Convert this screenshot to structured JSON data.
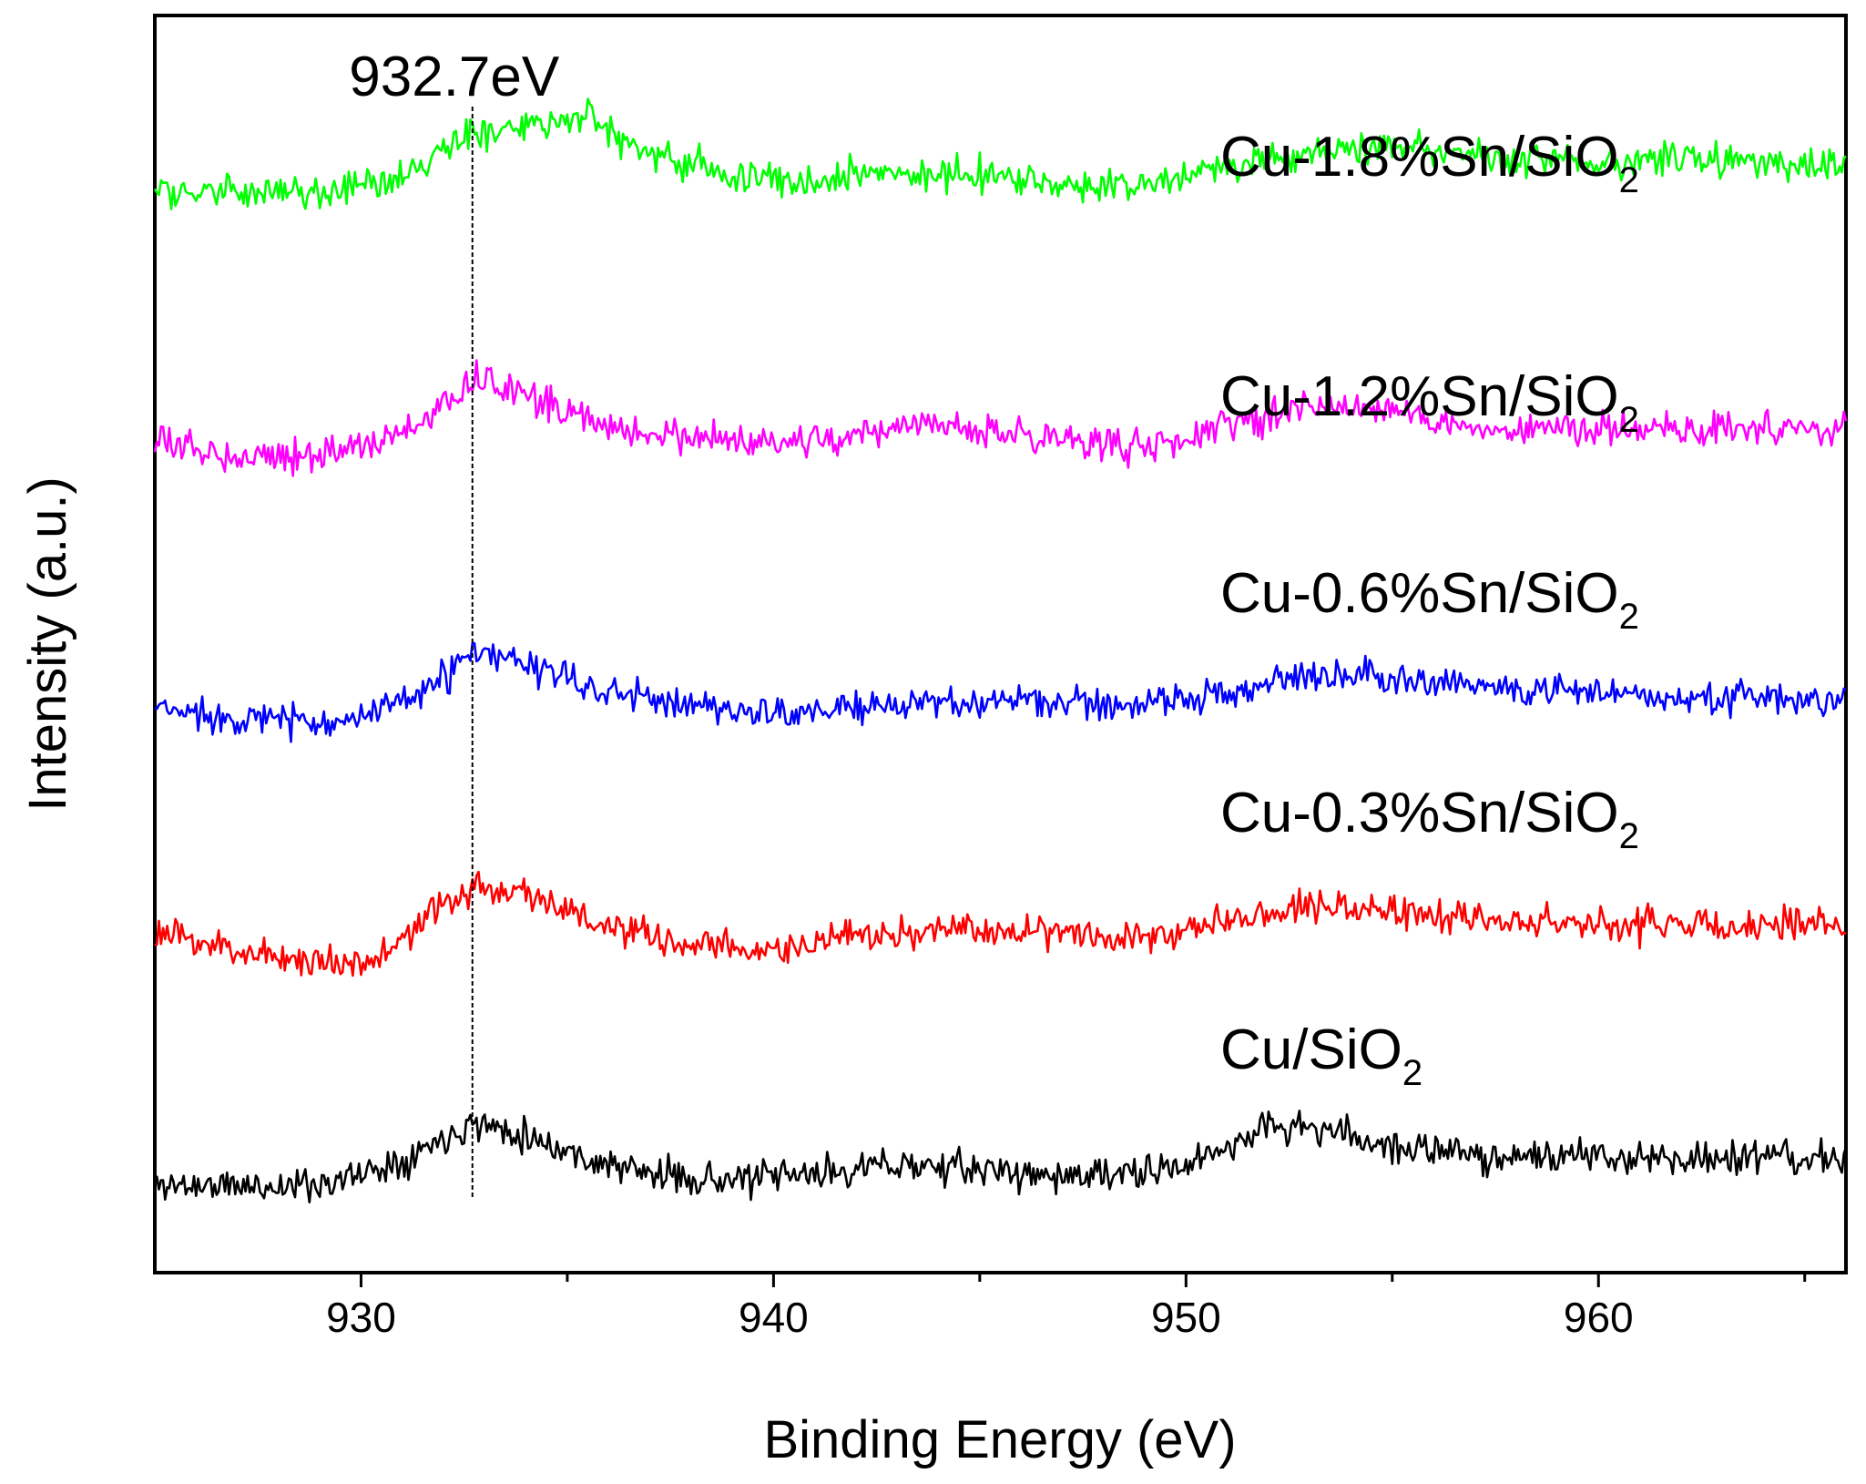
{
  "chart_data": {
    "type": "line",
    "title": "",
    "xlabel": "Binding Energy (eV)",
    "ylabel": "Intensity (a.u.)",
    "xlim": [
      925,
      966
    ],
    "ylim": [
      0,
      6
    ],
    "x_ticks": [
      930,
      940,
      950,
      960
    ],
    "x_tick_labels": [
      "930",
      "940",
      "950",
      "960"
    ],
    "y_ticks_shown": false,
    "grid": false,
    "peak_marker": {
      "x": 932.7,
      "label": "932.7eV",
      "style": "dotted"
    },
    "noise_amplitude": 0.07,
    "series": [
      {
        "name": "Cu/SiO2",
        "label_main": "Cu/SiO",
        "label_sub": "2",
        "color": "#000000",
        "baseline": 0.42,
        "seed": 11,
        "profile": [
          [
            925,
            0.0
          ],
          [
            928,
            -0.01
          ],
          [
            929.5,
            0.02
          ],
          [
            931,
            0.12
          ],
          [
            932.7,
            0.3
          ],
          [
            934,
            0.24
          ],
          [
            935.5,
            0.12
          ],
          [
            937,
            0.05
          ],
          [
            939,
            0.02
          ],
          [
            941,
            0.05
          ],
          [
            943,
            0.1
          ],
          [
            945,
            0.07
          ],
          [
            947,
            0.04
          ],
          [
            949,
            0.05
          ],
          [
            950,
            0.09
          ],
          [
            952,
            0.28
          ],
          [
            953.5,
            0.26
          ],
          [
            955,
            0.18
          ],
          [
            957,
            0.14
          ],
          [
            960,
            0.13
          ],
          [
            963,
            0.13
          ],
          [
            966,
            0.12
          ]
        ]
      },
      {
        "name": "Cu-0.3%Sn/SiO2",
        "label_main": "Cu-0.3%Sn/SiO",
        "label_sub": "2",
        "color": "#ff0000",
        "baseline": 1.48,
        "seed": 23,
        "profile": [
          [
            925,
            0.14
          ],
          [
            927,
            0.06
          ],
          [
            929,
            0.0
          ],
          [
            930.5,
            0.02
          ],
          [
            931.5,
            0.2
          ],
          [
            932.7,
            0.36
          ],
          [
            934,
            0.34
          ],
          [
            935,
            0.25
          ],
          [
            936,
            0.16
          ],
          [
            938,
            0.08
          ],
          [
            940,
            0.06
          ],
          [
            942,
            0.12
          ],
          [
            944,
            0.15
          ],
          [
            946,
            0.16
          ],
          [
            948,
            0.14
          ],
          [
            949.5,
            0.12
          ],
          [
            951,
            0.22
          ],
          [
            953,
            0.28
          ],
          [
            955,
            0.24
          ],
          [
            958,
            0.2
          ],
          [
            961,
            0.18
          ],
          [
            966,
            0.18
          ]
        ]
      },
      {
        "name": "Cu-0.6%Sn/SiO2",
        "label_main": "Cu-0.6%Sn/SiO",
        "label_sub": "2",
        "color": "#0000ff",
        "baseline": 2.65,
        "seed": 37,
        "profile": [
          [
            925,
            0.04
          ],
          [
            927,
            0.0
          ],
          [
            929,
            -0.02
          ],
          [
            930.5,
            0.02
          ],
          [
            931.5,
            0.12
          ],
          [
            932.7,
            0.3
          ],
          [
            934,
            0.26
          ],
          [
            935,
            0.18
          ],
          [
            936,
            0.12
          ],
          [
            938,
            0.06
          ],
          [
            940,
            0.02
          ],
          [
            942,
            0.04
          ],
          [
            944,
            0.07
          ],
          [
            946,
            0.08
          ],
          [
            948,
            0.06
          ],
          [
            950,
            0.08
          ],
          [
            952,
            0.17
          ],
          [
            954,
            0.22
          ],
          [
            956,
            0.18
          ],
          [
            958,
            0.13
          ],
          [
            961,
            0.11
          ],
          [
            964,
            0.09
          ],
          [
            966,
            0.08
          ]
        ]
      },
      {
        "name": "Cu-1.2%Sn/SiO2",
        "label_main": "Cu-1.2%Sn/SiO",
        "label_sub": "2",
        "color": "#ff00ff",
        "baseline": 3.88,
        "seed": 53,
        "profile": [
          [
            925,
            0.08
          ],
          [
            927,
            0.02
          ],
          [
            929,
            0.03
          ],
          [
            930.5,
            0.08
          ],
          [
            931.5,
            0.18
          ],
          [
            932.7,
            0.38
          ],
          [
            934,
            0.32
          ],
          [
            935,
            0.22
          ],
          [
            936,
            0.16
          ],
          [
            938,
            0.1
          ],
          [
            940,
            0.07
          ],
          [
            942,
            0.12
          ],
          [
            944,
            0.16
          ],
          [
            946,
            0.12
          ],
          [
            948,
            0.08
          ],
          [
            949.5,
            0.06
          ],
          [
            951,
            0.17
          ],
          [
            953,
            0.26
          ],
          [
            955,
            0.24
          ],
          [
            957,
            0.15
          ],
          [
            960,
            0.14
          ],
          [
            963,
            0.15
          ],
          [
            966,
            0.14
          ]
        ]
      },
      {
        "name": "Cu-1.8%Sn/SiO2",
        "label_main": "Cu-1.8%Sn/SiO",
        "label_sub": "2",
        "color": "#00ff00",
        "baseline": 5.15,
        "seed": 71,
        "profile": [
          [
            925,
            0.02
          ],
          [
            927,
            0.0
          ],
          [
            929,
            0.0
          ],
          [
            930.5,
            0.04
          ],
          [
            931.5,
            0.14
          ],
          [
            932.7,
            0.28
          ],
          [
            934,
            0.34
          ],
          [
            935.5,
            0.36
          ],
          [
            937,
            0.2
          ],
          [
            939,
            0.09
          ],
          [
            941,
            0.07
          ],
          [
            943,
            0.11
          ],
          [
            945,
            0.09
          ],
          [
            947,
            0.03
          ],
          [
            949,
            0.05
          ],
          [
            951,
            0.13
          ],
          [
            953,
            0.19
          ],
          [
            955,
            0.23
          ],
          [
            957,
            0.18
          ],
          [
            960,
            0.15
          ],
          [
            963,
            0.17
          ],
          [
            966,
            0.12
          ]
        ]
      }
    ]
  }
}
